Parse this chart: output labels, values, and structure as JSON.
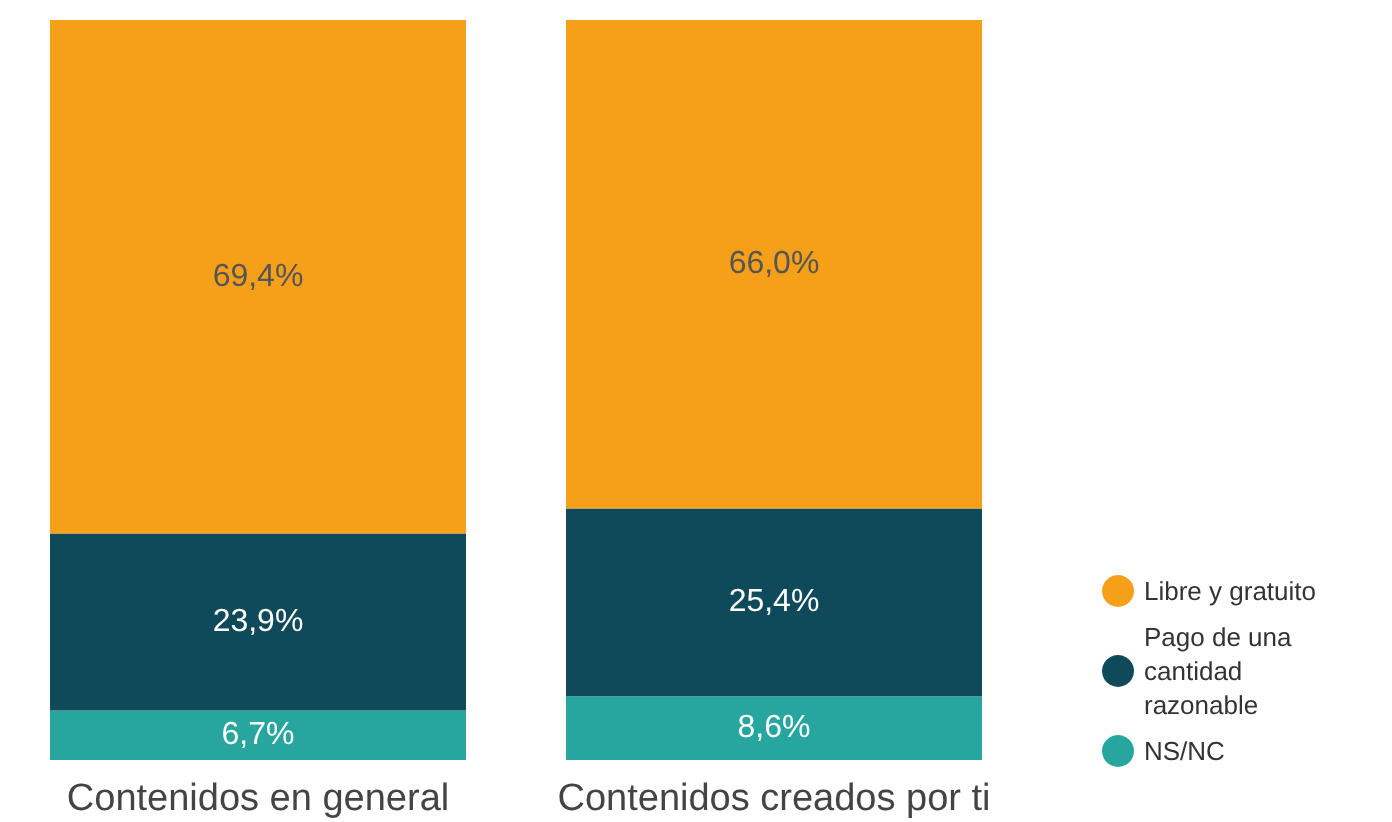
{
  "chart_data": {
    "type": "bar",
    "stacked": true,
    "categories": [
      "Contenidos en general",
      "Contenidos creados por ti"
    ],
    "ylim": [
      0,
      100
    ],
    "legend": "right",
    "series": [
      {
        "name": "NS/NC",
        "color": "#27a59f",
        "values": [
          6.7,
          8.6
        ],
        "value_labels": [
          "6,7%",
          "8,6%"
        ]
      },
      {
        "name": "Pago de una cantidad razonable",
        "color": "#0e4a5a",
        "values": [
          23.9,
          25.4
        ],
        "value_labels": [
          "23,9%",
          "25,4%"
        ]
      },
      {
        "name": "Libre y gratuito",
        "color": "#f6a01a",
        "values": [
          69.4,
          66.0
        ],
        "value_labels": [
          "69,4%",
          "66,0%"
        ]
      }
    ]
  }
}
